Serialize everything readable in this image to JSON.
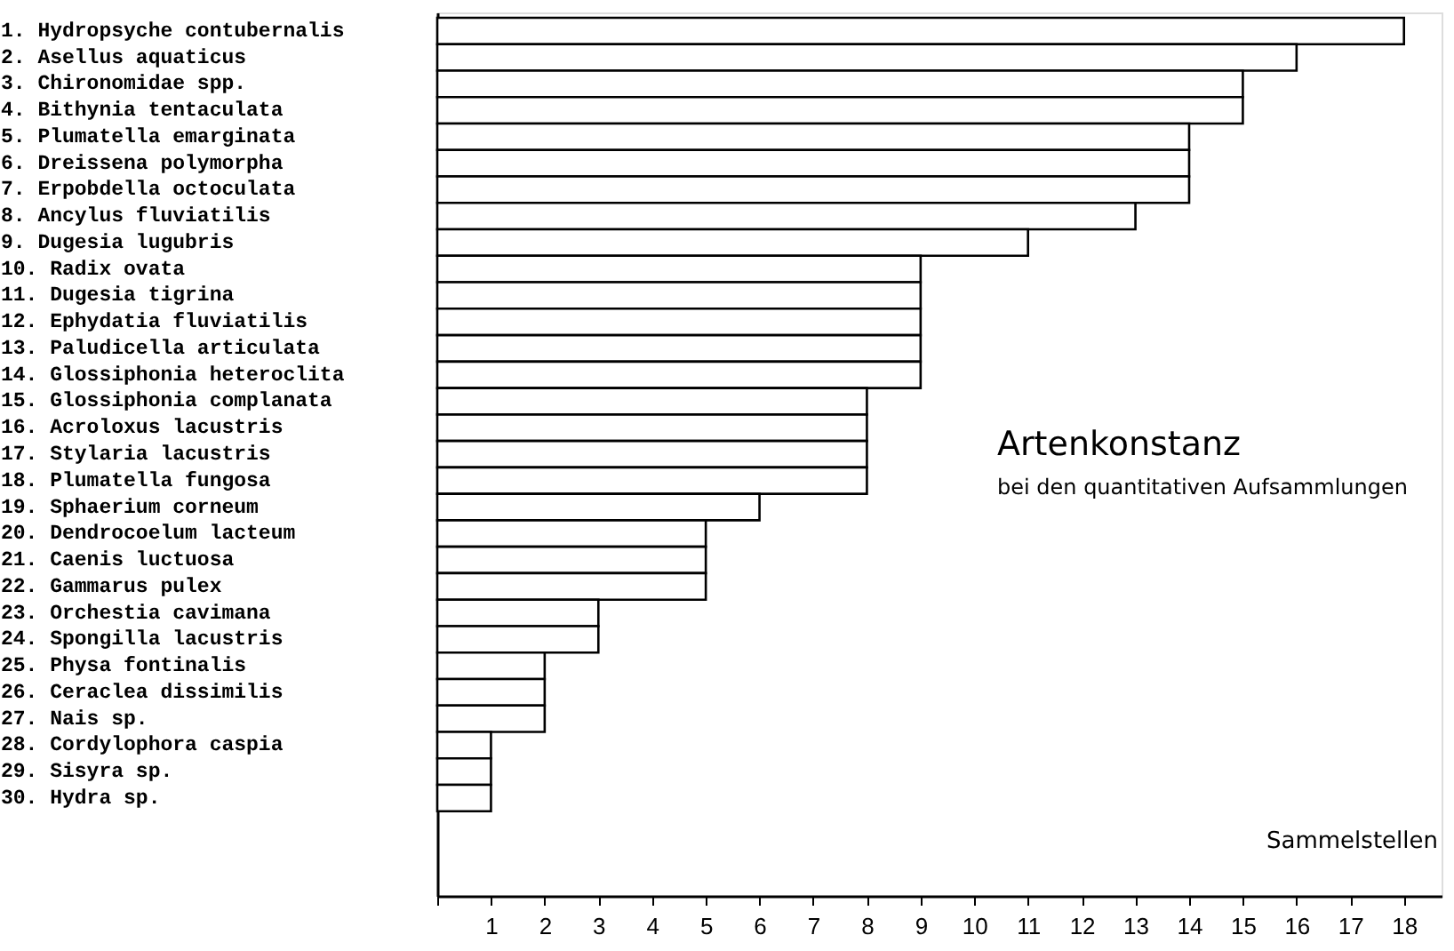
{
  "chart_data": {
    "type": "bar",
    "orientation": "horizontal",
    "title": "Artenkonstanz",
    "subtitle": "bei den quantitativen Aufsammlungen",
    "xlabel": "Sammelstellen",
    "categories": [
      "1. Hydropsyche contubernalis",
      "2. Asellus aquaticus",
      "3. Chironomidae spp.",
      "4. Bithynia tentaculata",
      "5. Plumatella emarginata",
      "6. Dreissena polymorpha",
      "7. Erpobdella octoculata",
      "8. Ancylus fluviatilis",
      "9. Dugesia lugubris",
      "10. Radix ovata",
      "11. Dugesia tigrina",
      "12. Ephydatia fluviatilis",
      "13. Paludicella articulata",
      "14. Glossiphonia heteroclita",
      "15. Glossiphonia complanata",
      "16. Acroloxus lacustris",
      "17. Stylaria lacustris",
      "18. Plumatella fungosa",
      "19. Sphaerium corneum",
      "20. Dendrocoelum lacteum",
      "21. Caenis luctuosa",
      "22. Gammarus pulex",
      "23. Orchestia cavimana",
      "24. Spongilla lacustris",
      "25. Physa fontinalis",
      "26. Ceraclea dissimilis",
      "27. Nais sp.",
      "28. Cordylophora caspia",
      "29. Sisyra sp.",
      "30. Hydra sp."
    ],
    "values": [
      18,
      16,
      15,
      15,
      14,
      14,
      14,
      13,
      11,
      9,
      9,
      9,
      9,
      9,
      8,
      8,
      8,
      8,
      6,
      5,
      5,
      5,
      3,
      3,
      2,
      2,
      2,
      1,
      1,
      1
    ],
    "color": "#ffffff",
    "xlim": [
      0,
      18.7
    ],
    "xticks": [
      {
        "value": 0,
        "label": null
      },
      1,
      2,
      3,
      4,
      5,
      6,
      7,
      8,
      9,
      10,
      11,
      12,
      13,
      14,
      15,
      16,
      17,
      18
    ],
    "grid": false
  }
}
